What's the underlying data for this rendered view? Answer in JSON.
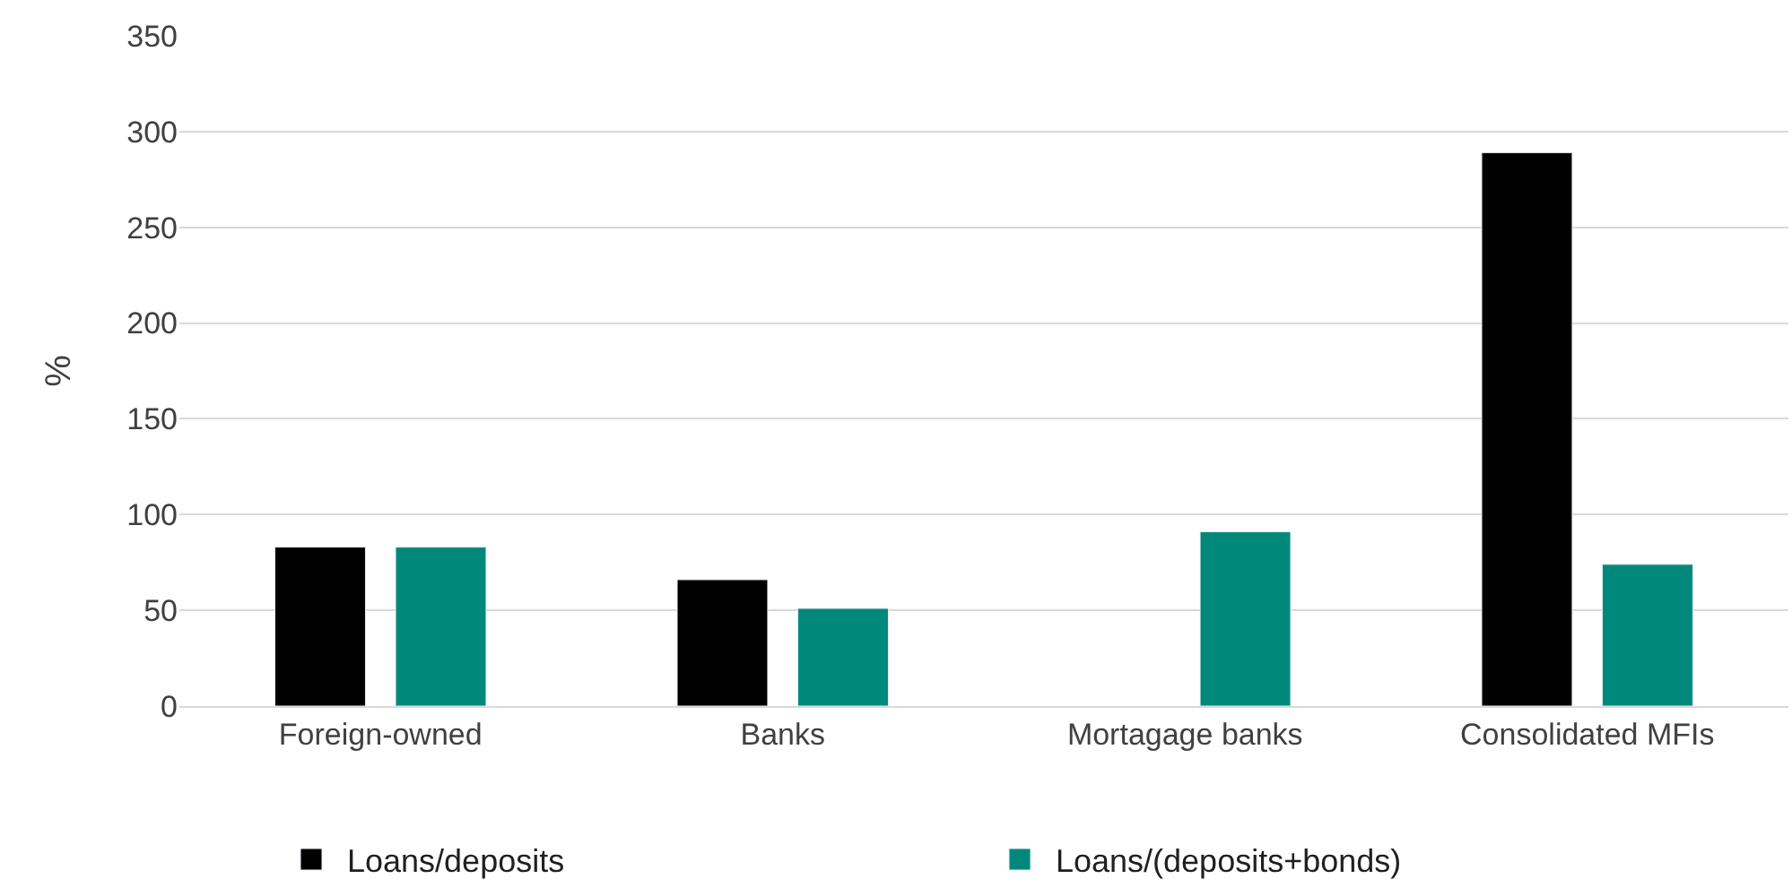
{
  "chart_data": {
    "type": "bar",
    "ylabel": "%",
    "categories": [
      "Foreign-owned",
      "Banks",
      "Mortagage banks",
      "Consolidated MFIs"
    ],
    "series": [
      {
        "name": "Loans/deposits",
        "color": "#000000",
        "values": [
          83,
          66,
          null,
          289
        ]
      },
      {
        "name": "Loans/(deposits+bonds)",
        "color": "#00897a",
        "values": [
          83,
          51,
          91,
          74
        ]
      }
    ],
    "ylim": [
      0,
      350
    ],
    "yticks": [
      0,
      50,
      100,
      150,
      200,
      250,
      300,
      350
    ],
    "grid": "y",
    "legend": "bottom"
  }
}
